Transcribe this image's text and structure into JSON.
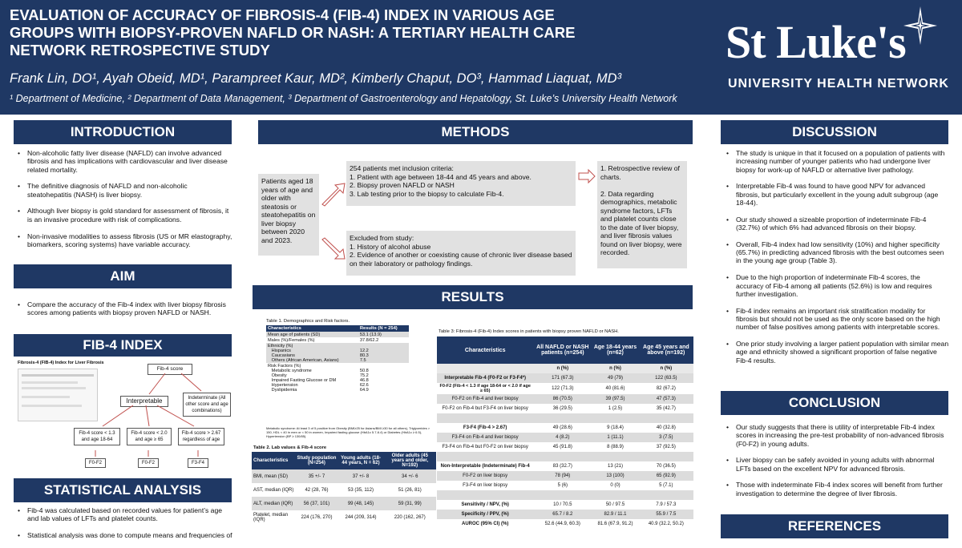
{
  "header": {
    "title": "EVALUATION OF ACCURACY OF FIBROSIS-4 (FIB-4) INDEX IN VARIOUS AGE GROUPS WITH BIOPSY-PROVEN NAFLD OR NASH: A TERTIARY HEALTH CARE NETWORK RETROSPECTIVE STUDY",
    "authors": "Frank Lin, DO¹, Ayah Obeid, MD¹, Parampreet Kaur, MD², Kimberly Chaput, DO³, Hammad Liaquat, MD³",
    "affiliations": "¹ Department of Medicine, ² Department of Data Management, ³ Department of Gastroenterology and Hepatology, St. Luke’s University Health Network",
    "logo_name": "St Luke's",
    "logo_subtitle": "UNIVERSITY HEALTH NETWORK"
  },
  "sections": {
    "introduction": "INTRODUCTION",
    "aim": "AIM",
    "fib4": "FIB-4 INDEX",
    "statistical": "STATISTICAL ANALYSIS",
    "methods": "METHODS",
    "results": "RESULTS",
    "discussion": "DISCUSSION",
    "conclusion": "CONCLUSION",
    "references": "REFERENCES"
  },
  "introduction": [
    "Non-alcoholic fatty liver disease (NAFLD) can involve advanced fibrosis and has implications with cardiovascular and liver disease related mortality.",
    "The definitive diagnosis of NAFLD and non-alcoholic steatohepatitis (NASH) is liver biopsy.",
    "Although liver biopsy is gold standard for assessment of fibrosis, it is an invasive procedure with risk of complications.",
    "Non-invasive modalities to assess fibrosis (US or MR elastography, biomarkers, scoring systems) have variable accuracy."
  ],
  "aim": [
    "Compare the accuracy of the Fib-4 index with liver biopsy fibrosis scores among patients with biopsy proven NAFLD or NASH."
  ],
  "fib4_figure": {
    "caption": "Fibrosis-4 (FIB-4) Index for Liver Fibrosis",
    "score": "Fib-4 score",
    "interpretable": "Interpretable",
    "indeterminate": "Indeterminate (All other score and age combinations)",
    "low": "Fib-4 score < 1.3 and age 18-64",
    "mid": "Fib-4 score < 2.0 and age ≥ 65",
    "high": "Fib-4 score > 2.67 regardless of age",
    "r1": "F0-F2",
    "r2": "F0-F2",
    "r3": "F3-F4"
  },
  "statistical": [
    "Fib-4 was calculated based on recorded values for patient’s age and lab values of LFTs and platelet counts.",
    "Statistical analysis was done to compute means and frequencies of"
  ],
  "methods": {
    "patients": "Patients aged 18 years of age and older with steatosis or steatohepatitis on liver biopsy between 2020 and 2023.",
    "inclusion": "254 patients met inclusion criteria:\n1. Patient with age between 18-44 and 45 years and above.\n2. Biopsy proven NAFLD or NASH\n3. Lab testing prior to the biopsy to calculate Fib-4.",
    "excluded": "Excluded from study:\n1. History of alcohol abuse\n2. Evidence of another or coexisting cause of chronic liver disease based on their laboratory or pathology findings.",
    "review": "1. Retrospective review of charts.\n\n2. Data regarding demographics, metabolic syndrome factors, LFTs and platelet counts close to the date of liver biopsy, and liver fibrosis values found on liver biopsy, were recorded."
  },
  "table1": {
    "caption": "Table 1. Demographics and Risk factors.",
    "headers": [
      "Characteristics",
      "Results (N = 254)"
    ],
    "rows": [
      [
        "Mean age of patients (SD)",
        "53.1 (13.9)"
      ],
      [
        "Males (%)/Females (%)",
        "37.8/62.2"
      ],
      [
        "Ethnicity (%)\n   Hispanics\n   Caucasians\n   Others (African American, Asians)",
        "\n12.2\n80.3\n7.5"
      ],
      [
        "Risk Factors (%)\n   Metabolic syndrome\n   Obesity\n   Impaired Fasting Glucose or DM\n   Hypertension\n   Dyslipidemia",
        "\n50.8\n75.2\n46.8\n62.6\n64.9"
      ]
    ],
    "note": "Metabolic syndrome: At least 3 of 5 positive from Obesity (BMI≥25 for Asians/BMI ≥30 for all others), Triglycerides > 150, HDL < 40 in men or < 50 in women, Impaired fasting glucose (HbA1c 5.7-6.4) or Diabetes (HbA1c ≥ 6.5), Hypertension (BP ≥ 130/85)."
  },
  "table2": {
    "caption": "Table 2. Lab values & Fib-4 score",
    "headers": [
      "Characteristics",
      "Study population (N=254)",
      "Young adults (18-44 years, N = 62)",
      "Older adults (45 years and older, N=192)"
    ],
    "rows": [
      [
        "BMI, mean (SD)",
        "35 +/- 7",
        "37 +/- 8",
        "34 +/- 6"
      ],
      [
        "AST, median (IQR)",
        "42 (28, 76)",
        "53 (35, 112)",
        "51 (26, 81)"
      ],
      [
        "ALT, median (IQR)",
        "56 (37, 101)",
        "99 (48, 145)",
        "59 (31, 99)"
      ],
      [
        "Platelet, median (IQR)",
        "224 (176, 270)",
        "244 (209, 314)",
        "220 (162, 267)"
      ]
    ]
  },
  "table3": {
    "caption": "Table 3: Fibrosis-4 (Fib-4) Index scores in patients with biopsy proven NAFLD or NASH.",
    "headers": [
      "Characteristics",
      "All NAFLD or NASH patients (n=254)",
      "Age 18-44 years (n=62)",
      "Age 45 years and above (n=192)"
    ],
    "subheaders": [
      "",
      "n (%)",
      "n (%)",
      "n (%)"
    ],
    "rows": [
      [
        "Interpretable Fib-4 (F0-F2 or F3-F4*)",
        "171 (67.3)",
        "49 (79)",
        "122 (63.5)"
      ],
      [
        "F0-F2 (Fib-4 < 1.3 if age 18-64 or < 2.0 if age ≥ 65)",
        "122 (71.3)",
        "40 (81.6)",
        "82 (67.2)"
      ],
      [
        "F0-F2 on Fib-4 and liver biopsy",
        "86 (70.5)",
        "39 (97.5)",
        "47 (57.3)"
      ],
      [
        "F0-F2 on Fib-4 but F3-F4 on liver biopsy",
        "36 (29.5)",
        "1 (2.5)",
        "35 (42.7)"
      ],
      [
        "",
        "",
        "",
        ""
      ],
      [
        "F3-F4 (Fib-4 > 2.67)",
        "49 (28.6)",
        "9 (18.4)",
        "40 (32.8)"
      ],
      [
        "F3-F4 on Fib-4 and liver biopsy",
        "4 (8.2)",
        "1 (11.1)",
        "3 (7.5)"
      ],
      [
        "F3-F4 on Fib-4 but F0-F2 on liver biopsy",
        "45 (91.8)",
        "8 (88.9)",
        "37 (92.5)"
      ],
      [
        "",
        "",
        "",
        ""
      ],
      [
        "Non-Interpretable (Indeterminate) Fib-4",
        "83 (32.7)",
        "13 (21)",
        "70 (36.5)"
      ],
      [
        "F0-F2 on liver biopsy",
        "78 (94)",
        "13 (100)",
        "65 (92.9)"
      ],
      [
        "F3-F4 on liver biopsy",
        "5 (6)",
        "0 (0)",
        "5 (7.1)"
      ],
      [
        "",
        "",
        "",
        ""
      ],
      [
        "Sensitivity / NPV, (%)",
        "10 / 70.5",
        "50 / 97.5",
        "7.9 / 57.3"
      ],
      [
        "Specificity / PPV, (%)",
        "65.7 / 8.2",
        "82.9 / 11.1",
        "55.9 / 7.5"
      ],
      [
        "AUROC (95% CI) (%)",
        "52.6 (44.9, 60.3)",
        "81.6 (67.9, 91.2)",
        "40.9 (32.2, 50.2)"
      ]
    ]
  },
  "discussion": [
    "The study is unique in that it focused on a population of patients with increasing number of younger patients who had undergone liver biopsy for work-up of NAFLD or alternative liver pathology.",
    "Interpretable Fib-4 was found to have good NPV for advanced fibrosis, but particularly excellent in the young adult subgroup (age 18-44).",
    "Our study showed a sizeable proportion of indeterminate Fib-4 (32.7%) of which 6% had advanced fibrosis on their biopsy.",
    "Overall, Fib-4 index had low sensitivity (10%) and higher specificity (65.7%) in predicting advanced fibrosis with the best outcomes seen in the young age group (Table 3).",
    "Due to the high proportion of indeterminate Fib-4 scores, the accuracy of Fib-4 among all patients (52.6%) is low and requires further investigation.",
    "Fib-4 index remains an important risk stratification modality for fibrosis but should not be used as the only score based on the high number of false positives among patients with interpretable scores.",
    "One prior study involving a larger patient population with similar mean age and ethnicity showed a significant proportion of false negative Fib-4 results."
  ],
  "conclusion": [
    "Our study suggests that there is utility of interpretable Fib-4 index scores in increasing the pre-test probability of non-advanced fibrosis (F0-F2) in young adults.",
    "Liver biopsy can be safely avoided in young adults with abnormal LFTs based on the excellent NPV for advanced fibrosis.",
    "Those with indeterminate Fib-4 index scores will benefit from further investigation to determine the degree of liver fibrosis."
  ],
  "colors": {
    "navy": "#1f3864",
    "gray_box": "#e1e1e1",
    "arrow": "#c0504d"
  }
}
